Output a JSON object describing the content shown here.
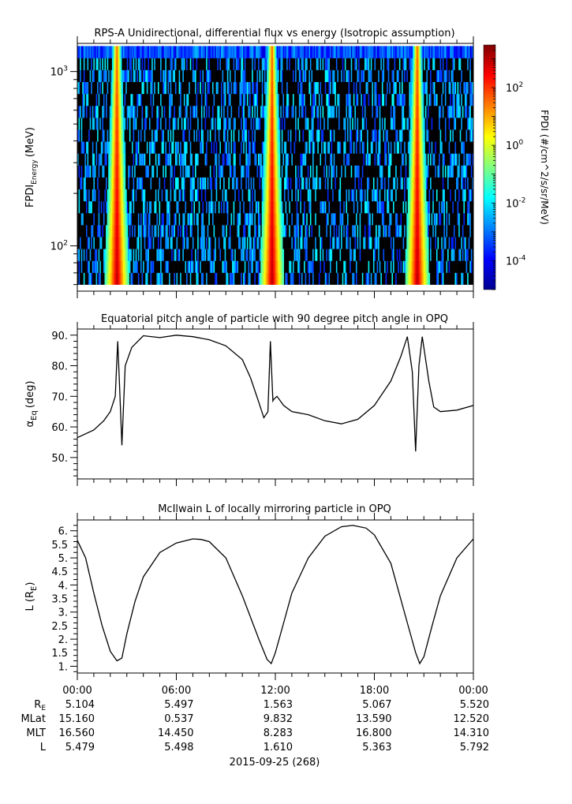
{
  "chart_data": [
    {
      "type": "heatmap",
      "title": "RPS-A Unidirectional, differential flux vs energy (Isotropic assumption)",
      "ylabel_main": "FPDI",
      "ylabel_sub": "Energy",
      "ylabel_unit": "(MeV)",
      "y_scale": "log",
      "ylim": [
        55,
        1450
      ],
      "y_ticks": [
        {
          "value": 100,
          "base": "10",
          "exp": "2"
        },
        {
          "value": 1000,
          "base": "10",
          "exp": "3"
        }
      ],
      "energy_bins_min_max": [
        60,
        1400
      ],
      "flux_peaks_hours": [
        2.4,
        11.8,
        20.6
      ],
      "colorbar": {
        "label": "FPDI (#/cm^2/s/sr/MeV)",
        "scale": "log",
        "range": [
          1e-05,
          3000
        ],
        "ticks": [
          {
            "value": 100,
            "base": "10",
            "exp": "2"
          },
          {
            "value": 1,
            "base": "10",
            "exp": "0"
          },
          {
            "value": 0.01,
            "base": "10",
            "exp": "-2"
          },
          {
            "value": 0.0001,
            "base": "10",
            "exp": "-4"
          }
        ],
        "colors": [
          "#00008f",
          "#0000ff",
          "#0080ff",
          "#00ffff",
          "#80ff80",
          "#ffff00",
          "#ff8000",
          "#ff0000",
          "#800000"
        ]
      }
    },
    {
      "type": "line",
      "title": "Equatorial pitch angle of particle with 90 degree pitch angle in OPQ",
      "ylabel_main": "α",
      "ylabel_sub": "Eq",
      "ylabel_unit": "(deg)",
      "ylim": [
        43,
        92
      ],
      "yticks": [
        "50.",
        "60.",
        "70.",
        "80.",
        "90."
      ],
      "x_hours": [
        0,
        1,
        1.6,
        2,
        2.3,
        2.45,
        2.55,
        2.7,
        2.9,
        3.3,
        4,
        5,
        6,
        7,
        8,
        9,
        10,
        10.5,
        11,
        11.3,
        11.55,
        11.7,
        11.85,
        11.9,
        12.1,
        12.5,
        13,
        14,
        15,
        16,
        17,
        18,
        19,
        19.6,
        20,
        20.3,
        20.5,
        20.7,
        20.9,
        21.3,
        21.6,
        22,
        23,
        24
      ],
      "y_deg": [
        56.5,
        59,
        62,
        65,
        70,
        88,
        75,
        54,
        80,
        86,
        89.8,
        89.2,
        90,
        89.5,
        88.5,
        86.5,
        82,
        76,
        68,
        63,
        65,
        88,
        68.5,
        69,
        70,
        67,
        65,
        64,
        62,
        61,
        62.5,
        67,
        75,
        83,
        89.5,
        78,
        52,
        80,
        89.5,
        75,
        66.5,
        65,
        65.5,
        67
      ]
    },
    {
      "type": "line",
      "title": "McIlwain L of locally mirroring particle in OPQ",
      "ylabel_main": "L (R",
      "ylabel_sub": "E",
      "ylabel_unit": ")",
      "ylim": [
        0.75,
        6.4
      ],
      "yticks": [
        "1.",
        "1.5",
        "2.",
        "2.5",
        "3.",
        "3.5",
        "4.",
        "4.5",
        "5.",
        "5.5",
        "6."
      ],
      "x_hours": [
        0,
        0.5,
        1,
        1.5,
        2,
        2.4,
        2.7,
        3,
        3.5,
        4,
        5,
        6,
        7,
        7.5,
        8,
        9,
        10,
        11,
        11.5,
        11.75,
        12,
        12.5,
        13,
        14,
        15,
        16,
        16.7,
        17.5,
        18,
        19,
        20,
        20.5,
        20.75,
        21,
        21.5,
        22,
        23,
        24
      ],
      "y_L": [
        5.65,
        5.0,
        3.7,
        2.5,
        1.55,
        1.2,
        1.3,
        2.2,
        3.4,
        4.3,
        5.2,
        5.55,
        5.7,
        5.68,
        5.6,
        5.0,
        3.6,
        2.0,
        1.25,
        1.1,
        1.5,
        2.6,
        3.7,
        5.0,
        5.8,
        6.15,
        6.2,
        6.1,
        5.85,
        4.8,
        2.6,
        1.5,
        1.1,
        1.35,
        2.5,
        3.6,
        5.0,
        5.7
      ]
    }
  ],
  "x_axis": {
    "tick_hours": [
      0,
      6,
      12,
      18,
      24
    ],
    "tick_labels": [
      "00:00",
      "06:00",
      "12:00",
      "18:00",
      "00:00"
    ],
    "date_label": "2015-09-25 (268)"
  },
  "ephemeris": {
    "rows": [
      {
        "label_main": "R",
        "label_sub": "E",
        "values": [
          "5.104",
          "5.497",
          "1.563",
          "5.067",
          "5.520"
        ]
      },
      {
        "label_main": "MLat",
        "label_sub": "",
        "values": [
          "15.160",
          "0.537",
          "9.832",
          "13.590",
          "12.520"
        ]
      },
      {
        "label_main": "MLT",
        "label_sub": "",
        "values": [
          "16.560",
          "14.450",
          "8.283",
          "16.800",
          "14.310"
        ]
      },
      {
        "label_main": "L",
        "label_sub": "",
        "values": [
          "5.479",
          "5.498",
          "1.610",
          "5.363",
          "5.792"
        ]
      }
    ]
  }
}
